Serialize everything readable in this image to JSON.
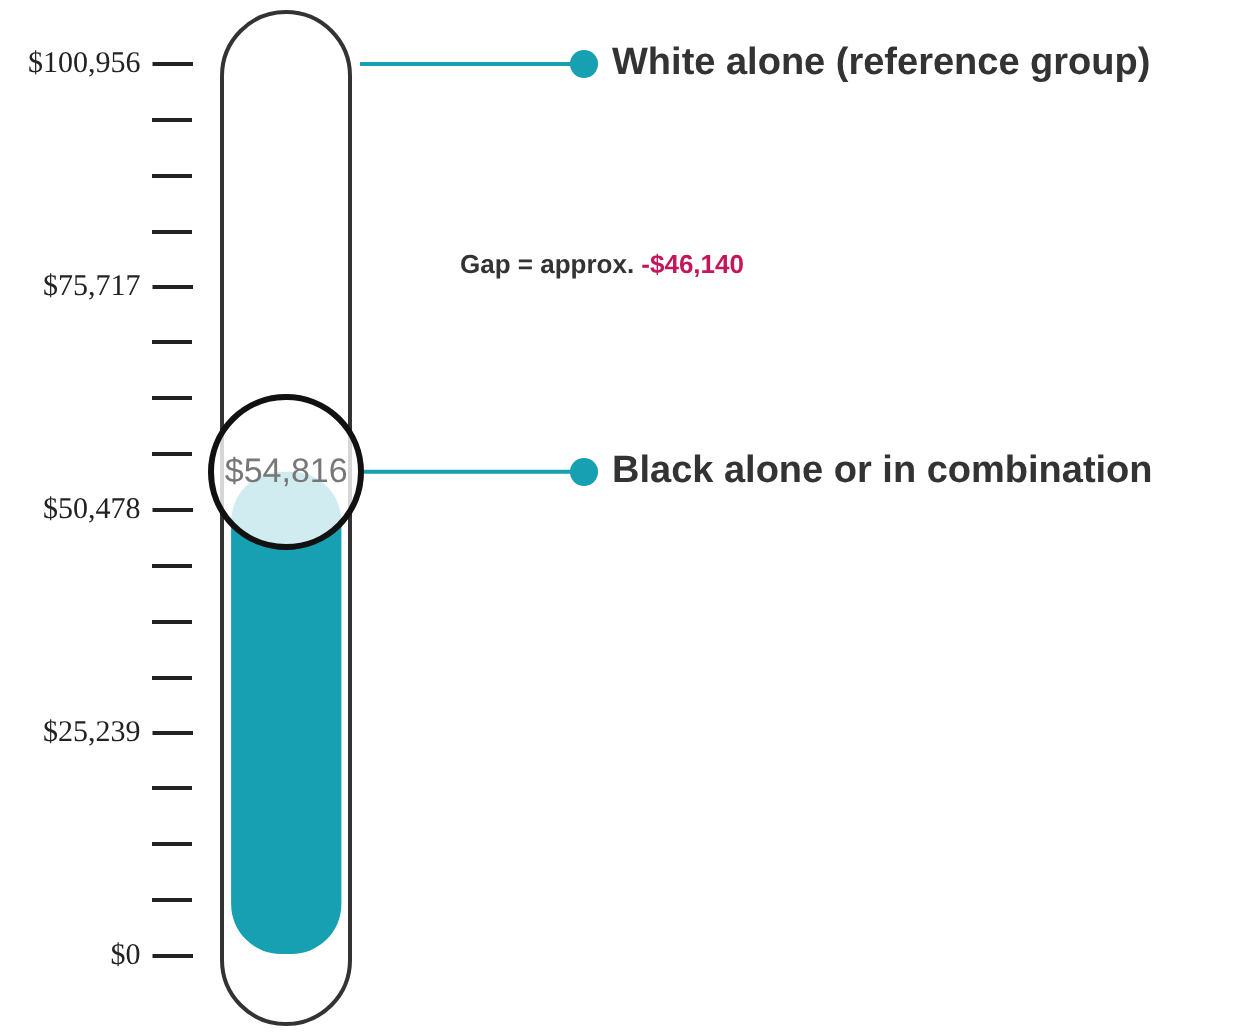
{
  "chart_data": {
    "type": "bar",
    "categories": [
      null
    ],
    "values": [
      54816
    ],
    "color": "#17a0b2",
    "value_labels": [
      "$54,816"
    ],
    "ylim": [
      0,
      100956
    ],
    "yticks": [
      {
        "value": 0,
        "label": "$0"
      },
      {
        "value": 25239,
        "label": "$25,239"
      },
      {
        "value": 50478,
        "label": "$50,478"
      },
      {
        "value": 75717,
        "label": "$75,717"
      },
      {
        "value": 100956,
        "label": "$100,956"
      }
    ],
    "tick_labels": "y",
    "grid": false,
    "legend": false,
    "ref_lines": [
      {
        "axis": "y",
        "value": 100956,
        "label": "White alone (reference group)",
        "color": "#17a0b2"
      },
      {
        "axis": "y",
        "value": 54816,
        "label": "Black alone or in combination",
        "color": "#17a0b2"
      }
    ],
    "annotations": [
      "Gap = approx. -$46,140"
    ]
  }
}
